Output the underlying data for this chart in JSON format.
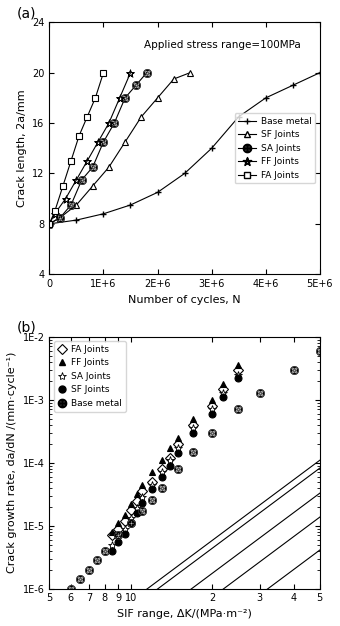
{
  "panel_a": {
    "title": "Applied stress range=100MPa",
    "xlabel": "Number of cycles, N",
    "ylabel": "Crack length, 2a/mm",
    "xlim": [
      0,
      5000000.0
    ],
    "ylim": [
      4,
      24
    ],
    "yticks": [
      4,
      8,
      12,
      16,
      20,
      24
    ],
    "xticks": [
      0,
      1000000.0,
      2000000.0,
      3000000.0,
      4000000.0,
      5000000.0
    ],
    "xticklabels": [
      "0",
      "1E+6",
      "2E+6",
      "3E+6",
      "4E+6",
      "5E+6"
    ],
    "series": {
      "Base metal": {
        "x": [
          0,
          500000,
          1000000,
          1500000,
          2000000,
          2500000,
          3000000,
          3500000,
          4000000,
          4500000,
          5000000
        ],
        "y": [
          8,
          8.3,
          8.8,
          9.5,
          10.5,
          12.0,
          14.0,
          16.5,
          18.0,
          19.0,
          20.0
        ],
        "marker": "plus",
        "color": "black"
      },
      "SF Joints": {
        "x": [
          0,
          200000,
          500000,
          800000,
          1100000,
          1400000,
          1700000,
          2000000,
          2300000,
          2600000
        ],
        "y": [
          8,
          8.5,
          9.5,
          11.0,
          12.5,
          14.5,
          16.5,
          18.0,
          19.5,
          20.0
        ],
        "marker": "triangle",
        "color": "black"
      },
      "SA Joints": {
        "x": [
          0,
          200000,
          400000,
          600000,
          800000,
          1000000,
          1200000,
          1400000,
          1600000,
          1800000
        ],
        "y": [
          8,
          8.5,
          9.5,
          11.5,
          12.5,
          14.5,
          16.0,
          18.0,
          19.0,
          20.0
        ],
        "marker": "circle_plus",
        "color": "black"
      },
      "FF Joints": {
        "x": [
          0,
          100000,
          300000,
          500000,
          700000,
          900000,
          1100000,
          1300000,
          1500000
        ],
        "y": [
          8,
          8.8,
          10.0,
          11.5,
          13.0,
          14.5,
          16.0,
          18.0,
          20.0
        ],
        "marker": "star_plus",
        "color": "black"
      },
      "FA Joints": {
        "x": [
          0,
          100000,
          250000,
          400000,
          550000,
          700000,
          850000,
          1000000
        ],
        "y": [
          8,
          9.0,
          11.0,
          13.0,
          15.0,
          16.5,
          18.0,
          20.0
        ],
        "marker": "square_plus",
        "color": "black"
      }
    }
  },
  "panel_b": {
    "xlabel": "SIF range, ΔK/(MPa·m⁻²)",
    "ylabel": "Crack growth rate, da/dN /(mm·cycle⁻¹)",
    "xlim_log": [
      0.69897,
      0.69897
    ],
    "ylim_log": [
      -6,
      -2
    ],
    "xmin": 5,
    "xmax": 5,
    "series": {
      "FA Joints": {
        "x": [
          8.5,
          9.0,
          9.5,
          10.0,
          10.5,
          11.0,
          12.0,
          13.0,
          14.0,
          15.0,
          17.0,
          20.0,
          22.0,
          25.0
        ],
        "y": [
          7e-06,
          9e-06,
          1.2e-05,
          1.8e-05,
          2.5e-05,
          3.5e-05,
          5e-05,
          8e-05,
          0.00012,
          0.0002,
          0.0004,
          0.0008,
          0.0015,
          0.003
        ],
        "marker": "diamond",
        "color": "black",
        "filled": false
      },
      "FF Joints": {
        "x": [
          8.5,
          9.0,
          9.5,
          10.0,
          10.5,
          11.0,
          12.0,
          13.0,
          14.0,
          15.0,
          17.0,
          20.0,
          22.0,
          25.0
        ],
        "y": [
          8e-06,
          1.1e-05,
          1.5e-05,
          2.2e-05,
          3.2e-05,
          4.5e-05,
          7e-05,
          0.00011,
          0.00017,
          0.00025,
          0.0005,
          0.001,
          0.0018,
          0.0035
        ],
        "marker": "triangle",
        "color": "black",
        "filled": true
      },
      "SA Joints": {
        "x": [
          8.5,
          9.0,
          9.5,
          10.0,
          10.5,
          11.0,
          12.0,
          13.0,
          14.0,
          15.0,
          17.0,
          20.0,
          22.0,
          25.0
        ],
        "y": [
          5e-06,
          6.5e-06,
          9e-06,
          1.3e-05,
          1.9e-05,
          2.8e-05,
          4.5e-05,
          7e-05,
          0.00011,
          0.00017,
          0.00035,
          0.0007,
          0.0013,
          0.0025
        ],
        "marker": "star",
        "color": "black",
        "filled": false
      },
      "SF Joints": {
        "x": [
          8.5,
          9.0,
          9.5,
          10.0,
          10.5,
          11.0,
          12.0,
          13.0,
          14.0,
          15.0,
          17.0,
          20.0,
          22.0,
          25.0
        ],
        "y": [
          4e-06,
          5.5e-06,
          7.5e-06,
          1.1e-05,
          1.6e-05,
          2.3e-05,
          3.8e-05,
          6e-05,
          9e-05,
          0.00014,
          0.0003,
          0.0006,
          0.0011,
          0.0022
        ],
        "marker": "circle",
        "color": "black",
        "filled": true
      },
      "Base metal": {
        "x": [
          6.0,
          6.5,
          7.0,
          7.5,
          8.0,
          9.0,
          10.0,
          11.0,
          12.0,
          13.0,
          15.0,
          17.0,
          20.0,
          25.0,
          30.0,
          40.0,
          50.0
        ],
        "y": [
          1e-06,
          1.4e-06,
          2e-06,
          2.8e-06,
          4e-06,
          7e-06,
          1.1e-05,
          1.7e-05,
          2.6e-05,
          4e-05,
          8e-05,
          0.00015,
          0.0003,
          0.0007,
          0.0013,
          0.003,
          0.006
        ],
        "marker": "circle_plus",
        "color": "black",
        "filled": false
      }
    },
    "fit_lines": {
      "FA": {
        "C": 3e-09,
        "m": 3.2
      },
      "FF": {
        "C": 4e-09,
        "m": 3.2
      },
      "SA": {
        "C": 1.5e-09,
        "m": 3.2
      },
      "SF": {
        "C": 8e-10,
        "m": 3.2
      },
      "Base": {
        "C": 2e-10,
        "m": 3.2
      }
    }
  }
}
